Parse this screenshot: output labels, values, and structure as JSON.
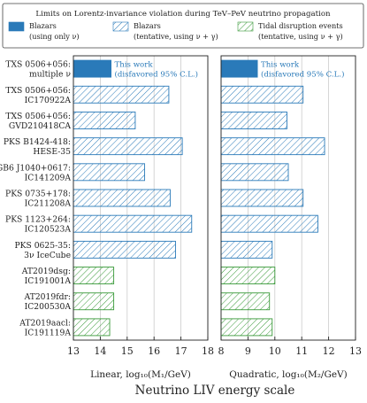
{
  "chart_data": {
    "type": "bar",
    "orientation": "horizontal",
    "legend": {
      "title": "Limits on Lorentz-invariance violation during TeV–PeV neutrino propagation",
      "entries": [
        {
          "line1": "Blazars",
          "line2": "(using only ν)",
          "style": "solid",
          "color": "#2a7ab9"
        },
        {
          "line1": "Blazars",
          "line2": "(tentative, using ν + γ)",
          "style": "hatch",
          "color": "#2a7ab9"
        },
        {
          "line1": "Tidal disruption events",
          "line2": "(tentative, using ν + γ)",
          "style": "hatch",
          "color": "#3a9a3a"
        }
      ]
    },
    "categories": [
      {
        "line1": "TXS 0506+056:",
        "line2": "multiple ν"
      },
      {
        "line1": "TXS 0506+056:",
        "line2": "IC170922A"
      },
      {
        "line1": "TXS 0506+056:",
        "line2": "GVD210418CA"
      },
      {
        "line1": "PKS B1424-418:",
        "line2": "HESE-35"
      },
      {
        "line1": "GB6 J1040+0617:",
        "line2": "IC141209A"
      },
      {
        "line1": "PKS 0735+178:",
        "line2": "IC211208A"
      },
      {
        "line1": "PKS 1123+264:",
        "line2": "IC120523A"
      },
      {
        "line1": "PKS 0625-35:",
        "line2": "3ν IceCube"
      },
      {
        "line1": "AT2019dsg:",
        "line2": "IC191001A"
      },
      {
        "line1": "AT2019fdr:",
        "line2": "IC200530A"
      },
      {
        "line1": "AT2019aacl:",
        "line2": "IC191119A"
      }
    ],
    "kind": [
      "solid",
      "hatch",
      "hatch",
      "hatch",
      "hatch",
      "hatch",
      "hatch",
      "hatch",
      "tde",
      "tde",
      "tde"
    ],
    "panels": [
      {
        "xlabel": "Linear, log₁₀(M₁/GeV)",
        "xlim": [
          13,
          18
        ],
        "ticks": [
          13,
          14,
          15,
          16,
          17,
          18
        ],
        "grid": true,
        "values": [
          14.4,
          16.55,
          15.3,
          17.05,
          15.65,
          16.6,
          17.4,
          16.8,
          14.5,
          14.5,
          14.35
        ],
        "annotation": {
          "line1": "This work",
          "line2": "(disfavored 95% C.L.)"
        }
      },
      {
        "xlabel": "Quadratic, log₁₀(M₂/GeV)",
        "xlim": [
          8,
          13
        ],
        "ticks": [
          8,
          9,
          10,
          11,
          12,
          13
        ],
        "grid": true,
        "values": [
          9.35,
          11.05,
          10.45,
          11.85,
          10.5,
          11.05,
          11.6,
          9.9,
          10.0,
          9.8,
          9.9
        ],
        "annotation": {
          "line1": "This work",
          "line2": "(disfavored 95% C.L.)"
        }
      }
    ],
    "xlabel": "Neutrino LIV energy scale"
  }
}
